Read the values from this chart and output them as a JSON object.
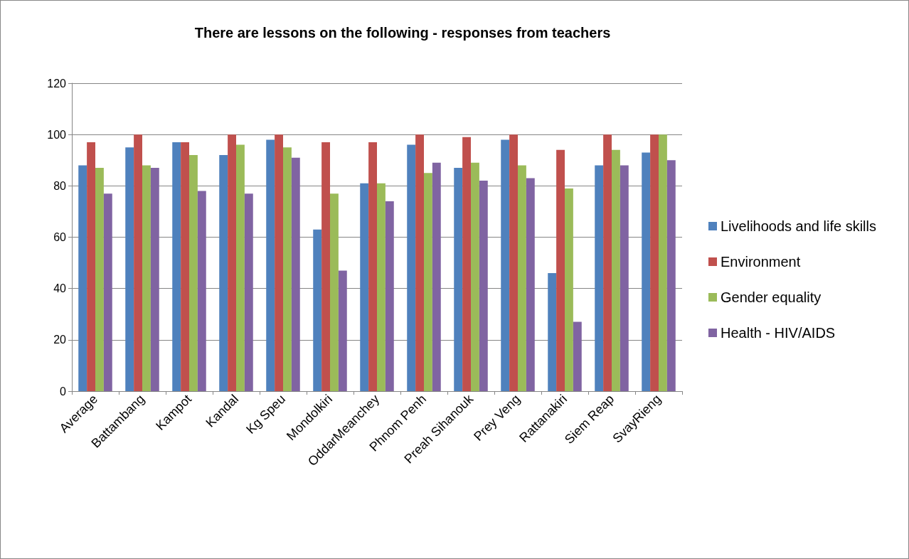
{
  "chart_data": {
    "type": "bar",
    "title": "There are lessons on the following - responses from teachers",
    "categories": [
      "Average",
      "Battambang",
      "Kampot",
      "Kandal",
      "Kg Speu",
      "Mondolkiri",
      "OddarMeanchey",
      "Phnom Penh",
      "Preah Sihanouk",
      "Prey Veng",
      "Rattanakiri",
      "Siem Reap",
      "SvayRieng"
    ],
    "series": [
      {
        "name": "Livelihoods and life skills",
        "color": "#4f81bd",
        "values": [
          88,
          95,
          97,
          92,
          98,
          63,
          81,
          96,
          87,
          98,
          46,
          88,
          93
        ]
      },
      {
        "name": "Environment",
        "color": "#c0504d",
        "values": [
          97,
          100,
          97,
          100,
          100,
          97,
          97,
          100,
          99,
          100,
          94,
          100,
          100
        ]
      },
      {
        "name": "Gender equality",
        "color": "#9bbb59",
        "values": [
          87,
          88,
          92,
          96,
          95,
          77,
          81,
          85,
          89,
          88,
          79,
          94,
          100
        ]
      },
      {
        "name": "Health - HIV/AIDS",
        "color": "#8064a2",
        "values": [
          77,
          87,
          78,
          77,
          91,
          47,
          74,
          89,
          82,
          83,
          27,
          88,
          90
        ]
      }
    ],
    "ylim": [
      0,
      120
    ],
    "yticks": [
      0,
      20,
      40,
      60,
      80,
      100,
      120
    ],
    "grid": "y",
    "legend": "right"
  }
}
